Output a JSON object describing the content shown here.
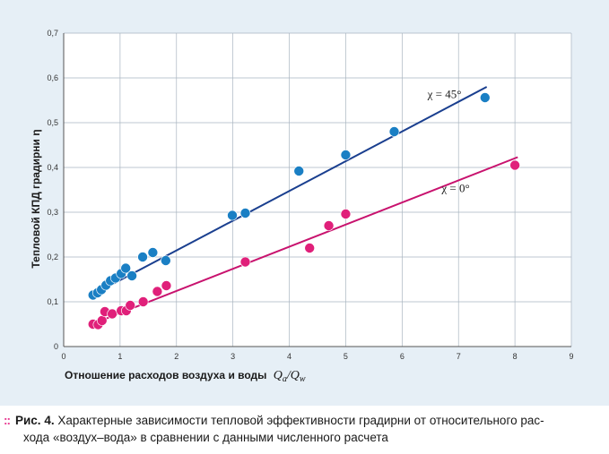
{
  "chart_data": {
    "type": "scatter",
    "title": "",
    "xlabel": "Отношение расходов воздуха и воды",
    "xlabel_math": "Qa/Qw",
    "ylabel": "Тепловой КПД градирни η",
    "xlim": [
      0,
      9
    ],
    "ylim": [
      0,
      0.7
    ],
    "xticks": [
      0,
      1,
      2,
      3,
      4,
      5,
      6,
      7,
      8,
      9
    ],
    "yticks": [
      "0",
      "0,1",
      "0,2",
      "0,3",
      "0,4",
      "0,5",
      "0,6",
      "0,7"
    ],
    "grid": true,
    "series": [
      {
        "name": "χ = 45°",
        "color": "#1a7fc4",
        "line_color": "#1a3f8f",
        "points": [
          [
            0.52,
            0.115
          ],
          [
            0.6,
            0.12
          ],
          [
            0.67,
            0.127
          ],
          [
            0.75,
            0.137
          ],
          [
            0.83,
            0.147
          ],
          [
            0.92,
            0.153
          ],
          [
            1.02,
            0.163
          ],
          [
            1.1,
            0.175
          ],
          [
            1.21,
            0.158
          ],
          [
            1.4,
            0.2
          ],
          [
            1.58,
            0.21
          ],
          [
            1.81,
            0.192
          ],
          [
            2.99,
            0.293
          ],
          [
            3.22,
            0.298
          ],
          [
            4.17,
            0.392
          ],
          [
            5.0,
            0.428
          ],
          [
            5.86,
            0.48
          ],
          [
            7.47,
            0.556
          ]
        ],
        "fit": [
          [
            0.5,
            0.115
          ],
          [
            7.5,
            0.58
          ]
        ]
      },
      {
        "name": "χ = 0°",
        "color": "#e0207a",
        "line_color": "#c8126e",
        "points": [
          [
            0.52,
            0.05
          ],
          [
            0.61,
            0.049
          ],
          [
            0.68,
            0.058
          ],
          [
            0.73,
            0.078
          ],
          [
            0.86,
            0.073
          ],
          [
            1.02,
            0.08
          ],
          [
            1.11,
            0.08
          ],
          [
            1.18,
            0.092
          ],
          [
            1.41,
            0.1
          ],
          [
            1.66,
            0.123
          ],
          [
            1.82,
            0.136
          ],
          [
            3.22,
            0.189
          ],
          [
            4.36,
            0.22
          ],
          [
            4.7,
            0.27
          ],
          [
            5.0,
            0.296
          ],
          [
            8.0,
            0.405
          ]
        ],
        "fit": [
          [
            0.5,
            0.05
          ],
          [
            8.05,
            0.423
          ]
        ]
      }
    ]
  },
  "caption": {
    "bullet": "::",
    "fig_no": "Рис. 4.",
    "text_line1": "Характерные зависимости тепловой эффективности градирни от относительного рас-",
    "text_line2": "хода «воздух–вода» в сравнении с данными численного расчета"
  }
}
